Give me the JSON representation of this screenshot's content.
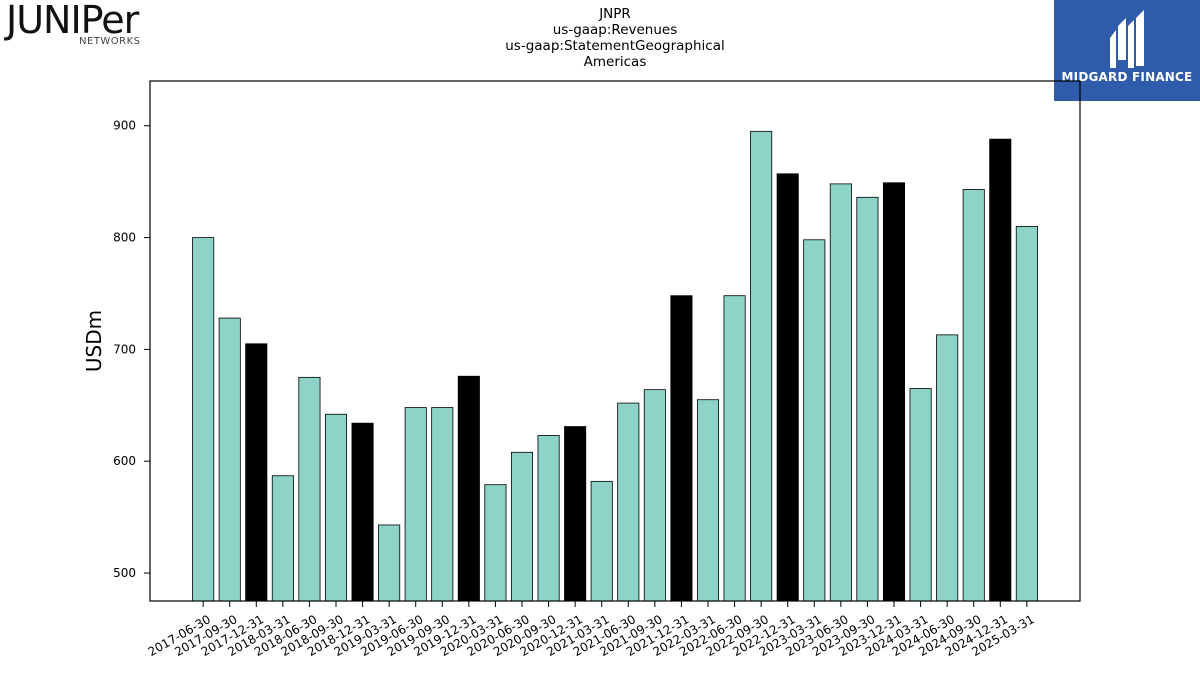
{
  "header": {
    "title_lines": [
      "JNPR",
      "us-gaap:Revenues",
      "us-gaap:StatementGeographical",
      "Americas"
    ]
  },
  "logos": {
    "left": {
      "word": "JUNIPer",
      "sub": "NETWORKS"
    },
    "right": {
      "text": "MIDGARD FINANCE",
      "background": "#2f5bab"
    }
  },
  "chart_data": {
    "type": "bar",
    "ylabel": "USDm",
    "xlabel": "",
    "ylim": [
      475,
      940
    ],
    "yticks": [
      500,
      600,
      700,
      800,
      900
    ],
    "colors": {
      "quarter": "#8dd3c7",
      "fiscal_year_end": "#000000"
    },
    "categories": [
      "2017-06-30",
      "2017-09-30",
      "2017-12-31",
      "2018-03-31",
      "2018-06-30",
      "2018-09-30",
      "2018-12-31",
      "2019-03-31",
      "2019-06-30",
      "2019-09-30",
      "2019-12-31",
      "2020-03-31",
      "2020-06-30",
      "2020-09-30",
      "2020-12-31",
      "2021-03-31",
      "2021-06-30",
      "2021-09-30",
      "2021-12-31",
      "2022-03-31",
      "2022-06-30",
      "2022-09-30",
      "2022-12-31",
      "2023-03-31",
      "2023-06-30",
      "2023-09-30",
      "2023-12-31",
      "2024-03-31",
      "2024-06-30",
      "2024-09-30",
      "2024-12-31",
      "2025-03-31"
    ],
    "values": [
      800,
      728,
      705,
      587,
      675,
      642,
      634,
      543,
      648,
      648,
      676,
      579,
      608,
      623,
      631,
      582,
      652,
      664,
      748,
      655,
      748,
      895,
      857,
      798,
      848,
      836,
      849,
      665,
      713,
      843,
      888,
      810
    ],
    "highlight": [
      false,
      false,
      true,
      false,
      false,
      false,
      true,
      false,
      false,
      false,
      true,
      false,
      false,
      false,
      true,
      false,
      false,
      false,
      true,
      false,
      false,
      false,
      true,
      false,
      false,
      false,
      true,
      false,
      false,
      false,
      true,
      false
    ]
  }
}
